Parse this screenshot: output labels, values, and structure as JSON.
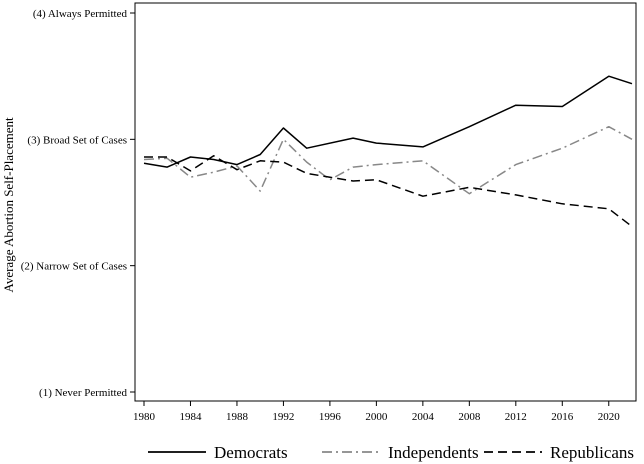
{
  "chart_data": {
    "type": "line",
    "title": "",
    "xlabel": "",
    "ylabel": "Average Abortion Self-Placement",
    "ylim": [
      1,
      4
    ],
    "xlim": [
      1980,
      2022
    ],
    "grid": false,
    "legend_position": "bottom",
    "x_ticks": [
      1980,
      1984,
      1988,
      1992,
      1996,
      2000,
      2004,
      2008,
      2012,
      2016,
      2020
    ],
    "x_tick_labels": [
      "1980",
      "1984",
      "1988",
      "1992",
      "1996",
      "2000",
      "2004",
      "2008",
      "2012",
      "2016",
      "2020"
    ],
    "y_ticks": [
      {
        "value": 4,
        "label": "(4) Always Permitted"
      },
      {
        "value": 3,
        "label": "(3) Broad Set of Cases"
      },
      {
        "value": 2,
        "label": "(2) Narrow Set of Cases"
      },
      {
        "value": 1,
        "label": "(1) Never Permitted"
      }
    ],
    "series": [
      {
        "name": "Democrats",
        "style": "solid",
        "color": "#000000",
        "x": [
          1980,
          1982,
          1984,
          1986,
          1988,
          1990,
          1992,
          1994,
          1998,
          2000,
          2004,
          2008,
          2012,
          2016,
          2020,
          2022
        ],
        "values": [
          2.81,
          2.78,
          2.86,
          2.84,
          2.8,
          2.88,
          3.09,
          2.93,
          3.01,
          2.97,
          2.94,
          3.1,
          3.27,
          3.26,
          3.5,
          3.44
        ]
      },
      {
        "name": "Independents",
        "style": "dashdot",
        "color": "#888888",
        "x": [
          1980,
          1982,
          1984,
          1986,
          1988,
          1990,
          1992,
          1994,
          1996,
          1998,
          2000,
          2004,
          2008,
          2012,
          2016,
          2020,
          2022
        ],
        "values": [
          2.84,
          2.85,
          2.7,
          2.74,
          2.79,
          2.59,
          3.0,
          2.82,
          2.68,
          2.78,
          2.8,
          2.83,
          2.57,
          2.8,
          2.93,
          3.1,
          3.0
        ]
      },
      {
        "name": "Republicans",
        "style": "dashed",
        "color": "#000000",
        "x": [
          1980,
          1982,
          1984,
          1986,
          1988,
          1990,
          1992,
          1994,
          1998,
          2000,
          2004,
          2008,
          2012,
          2016,
          2020,
          2022
        ],
        "values": [
          2.86,
          2.86,
          2.75,
          2.87,
          2.76,
          2.83,
          2.82,
          2.73,
          2.67,
          2.68,
          2.55,
          2.62,
          2.56,
          2.49,
          2.45,
          2.31
        ]
      }
    ]
  }
}
